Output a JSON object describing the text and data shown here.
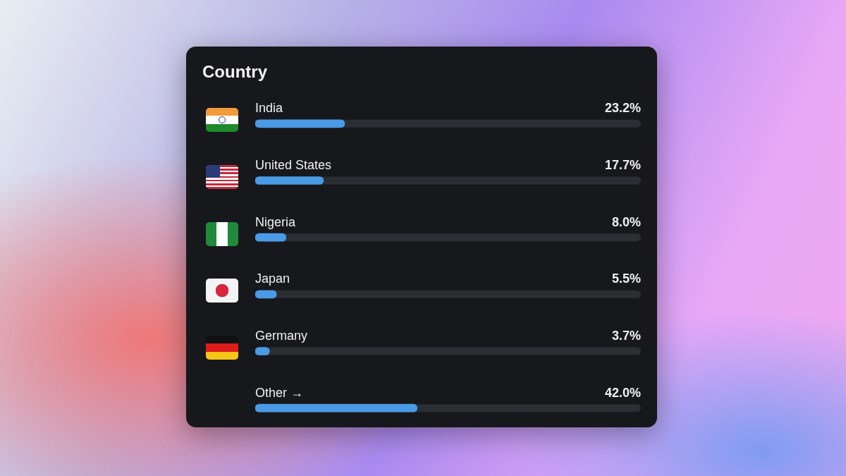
{
  "chart_data": {
    "type": "bar",
    "orientation": "horizontal",
    "title": "Country",
    "categories": [
      "India",
      "United States",
      "Nigeria",
      "Japan",
      "Germany",
      "Other →"
    ],
    "values": [
      23.2,
      17.7,
      8.0,
      5.5,
      3.7,
      42.0
    ],
    "value_labels": [
      "23.2%",
      "17.7%",
      "8.0%",
      "5.5%",
      "3.7%",
      "42.0%"
    ],
    "color": "#4a9ae6",
    "xlim": [
      0,
      100
    ],
    "tick_labels": false,
    "grid": false,
    "legend": false
  }
}
